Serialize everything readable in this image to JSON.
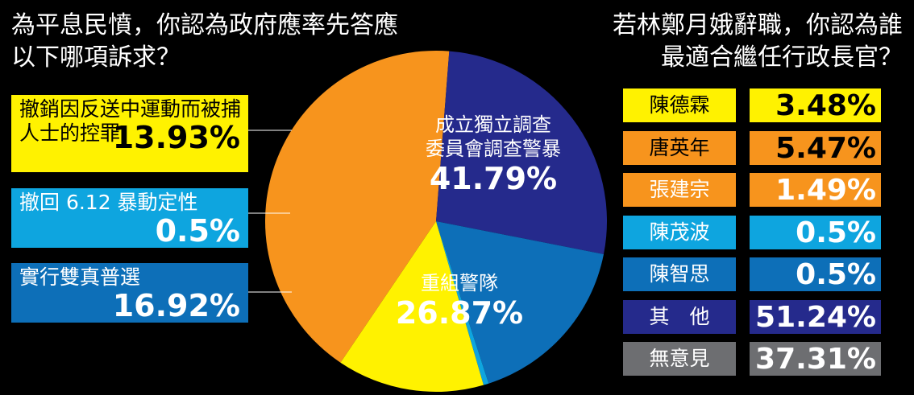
{
  "left_title": [
    "為平息民憤，你認為政府應率先答應",
    "以下哪項訴求？"
  ],
  "right_title": [
    "若林鄭月娥辭職，你認為誰",
    "最適合繼任行政長官？"
  ],
  "chart_data": [
    {
      "type": "pie",
      "title": "為平息民憤，你認為政府應率先答應以下哪項訴求？",
      "slices": [
        {
          "label": [
            "撤銷因反送中運動而被捕",
            "人士的控罪"
          ],
          "value": 13.93,
          "pct_text": "13.93%",
          "color": "#fff200"
        },
        {
          "label": [
            "撤回 6.12 暴動定性"
          ],
          "value": 0.5,
          "pct_text": "0.5%",
          "color": "#0ea5df"
        },
        {
          "label": [
            "實行雙真普選"
          ],
          "value": 16.92,
          "pct_text": "16.92%",
          "color": "#0d6fb8"
        },
        {
          "label": [
            "成立獨立調查",
            "委員會調查警暴"
          ],
          "value": 41.79,
          "pct_text": "41.79%",
          "color": "#f7941d"
        },
        {
          "label": [
            "重組警隊"
          ],
          "value": 26.87,
          "pct_text": "26.87%",
          "color": "#252a8c"
        }
      ]
    },
    {
      "type": "table",
      "title": "若林鄭月娥辭職，你認為誰最適合繼任行政長官？",
      "rows": [
        {
          "name": "陳德霖",
          "pct_text": "3.48%",
          "value": 3.48,
          "bg": "#fff200",
          "fg": "#000000"
        },
        {
          "name": "唐英年",
          "pct_text": "5.47%",
          "value": 5.47,
          "bg": "#f7941d",
          "fg": "#000000"
        },
        {
          "name": "張建宗",
          "pct_text": "1.49%",
          "value": 1.49,
          "bg": "#f7941d",
          "fg": "#ffffff"
        },
        {
          "name": "陳茂波",
          "pct_text": "0.5%",
          "value": 0.5,
          "bg": "#0ea5df",
          "fg": "#ffffff"
        },
        {
          "name": "陳智思",
          "pct_text": "0.5%",
          "value": 0.5,
          "bg": "#0d6fb8",
          "fg": "#ffffff"
        },
        {
          "name": "其　他",
          "pct_text": "51.24%",
          "value": 51.24,
          "bg": "#252a8c",
          "fg": "#ffffff"
        },
        {
          "name": "無意見",
          "pct_text": "37.31%",
          "value": 37.31,
          "bg": "#6d6e71",
          "fg": "#ffffff"
        }
      ]
    }
  ]
}
